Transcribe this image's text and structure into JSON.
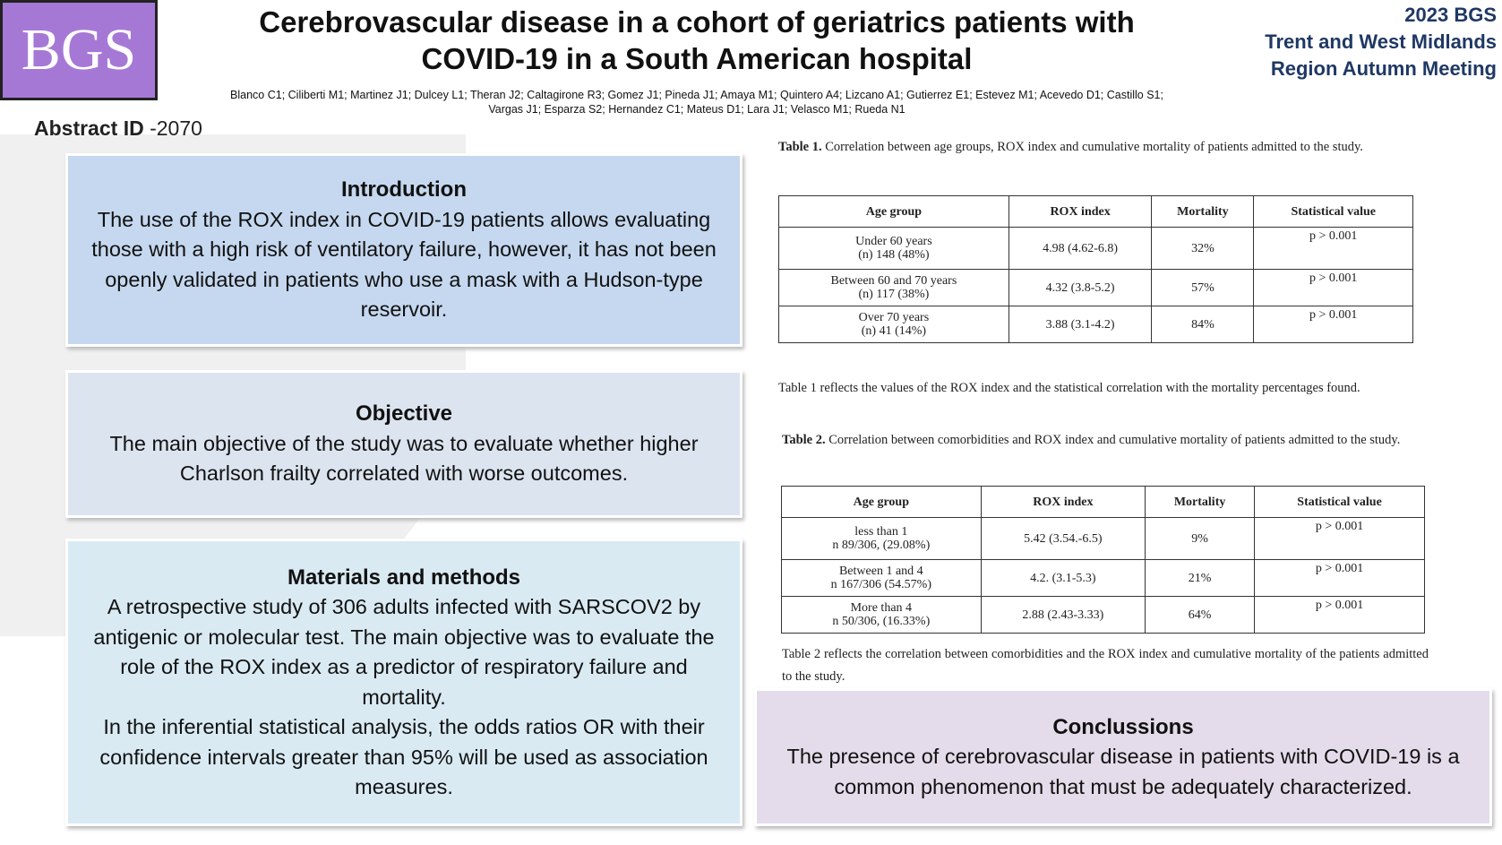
{
  "header": {
    "logo": "BGS",
    "title": "Cerebrovascular disease in a cohort of geriatrics patients with COVID-19 in a South American hospital",
    "authors": "Blanco C1; Ciliberti M1; Martinez J1; Dulcey L1; Theran J2; Caltagirone R3; Gomez J1; Pineda J1; Amaya M1; Quintero A4; Lizcano A1; Gutierrez E1; Estevez M1; Acevedo D1; Castillo S1; Vargas J1; Esparza S2; Hernandez C1; Mateus D1; Lara J1; Velasco M1; Rueda N1",
    "meeting": [
      "2023 BGS",
      "Trent and West Midlands",
      "Region Autumn Meeting"
    ]
  },
  "abstract_id": {
    "label": "Abstract ID",
    "value": "-2070"
  },
  "introduction": {
    "heading": "Introduction",
    "body": "The use of the ROX index in COVID-19 patients allows evaluating those with a high risk of ventilatory failure, however, it has not been openly validated in patients who use a mask with a Hudson-type reservoir."
  },
  "objective": {
    "heading": "Objective",
    "body": "The main objective of the study was to evaluate whether higher Charlson frailty correlated with worse outcomes."
  },
  "methods": {
    "heading": "Materials and methods",
    "paragraphs": [
      "A retrospective study of 306 adults infected with SARSCOV2 by antigenic or molecular test. The main objective was to evaluate the role of the ROX index as a predictor of respiratory failure and mortality.",
      "In the inferential statistical analysis, the odds ratios OR with their confidence intervals greater than 95% will be used as association measures."
    ]
  },
  "table1": {
    "label": "Table 1.",
    "caption": "Correlation between age groups, ROX index and cumulative mortality of patients admitted to the study.",
    "columns": [
      "Age group",
      "ROX index",
      "Mortality",
      "Statistical value"
    ],
    "rows": [
      [
        "Under 60 years\n(n) 148 (48%)",
        "4.98 (4.62-6.8)",
        "32%",
        "p > 0.001"
      ],
      [
        "Between 60 and 70 years\n(n) 117 (38%)",
        "4.32 (3.8-5.2)",
        "57%",
        "p > 0.001"
      ],
      [
        "Over 70 years\n(n) 41 (14%)",
        "3.88 (3.1-4.2)",
        "84%",
        "p > 0.001"
      ]
    ],
    "note": "Table 1 reflects the values of the ROX index and the statistical correlation with the mortality percentages found."
  },
  "table2": {
    "label": "Table 2.",
    "caption": "Correlation between comorbidities and ROX index and cumulative mortality of patients admitted to the study.",
    "columns": [
      "Age group",
      "ROX index",
      "Mortality",
      "Statistical value"
    ],
    "rows": [
      [
        "less than 1\nn 89/306, (29.08%)",
        "5.42 (3.54.-6.5)",
        "9%",
        "p > 0.001"
      ],
      [
        "Between 1 and 4\nn 167/306 (54.57%)",
        "4.2. (3.1-5.3)",
        "21%",
        "p > 0.001"
      ],
      [
        "More than 4\nn 50/306, (16.33%)",
        "2.88 (2.43-3.33)",
        "64%",
        "p > 0.001"
      ]
    ],
    "note": "Table 2 reflects the correlation between comorbidities and the ROX index and cumulative mortality of the patients admitted to the study."
  },
  "conclusions": {
    "heading": "Conclussions",
    "body": "The presence of cerebrovascular disease in patients with COVID-19 is a common phenomenon that must be adequately characterized."
  }
}
